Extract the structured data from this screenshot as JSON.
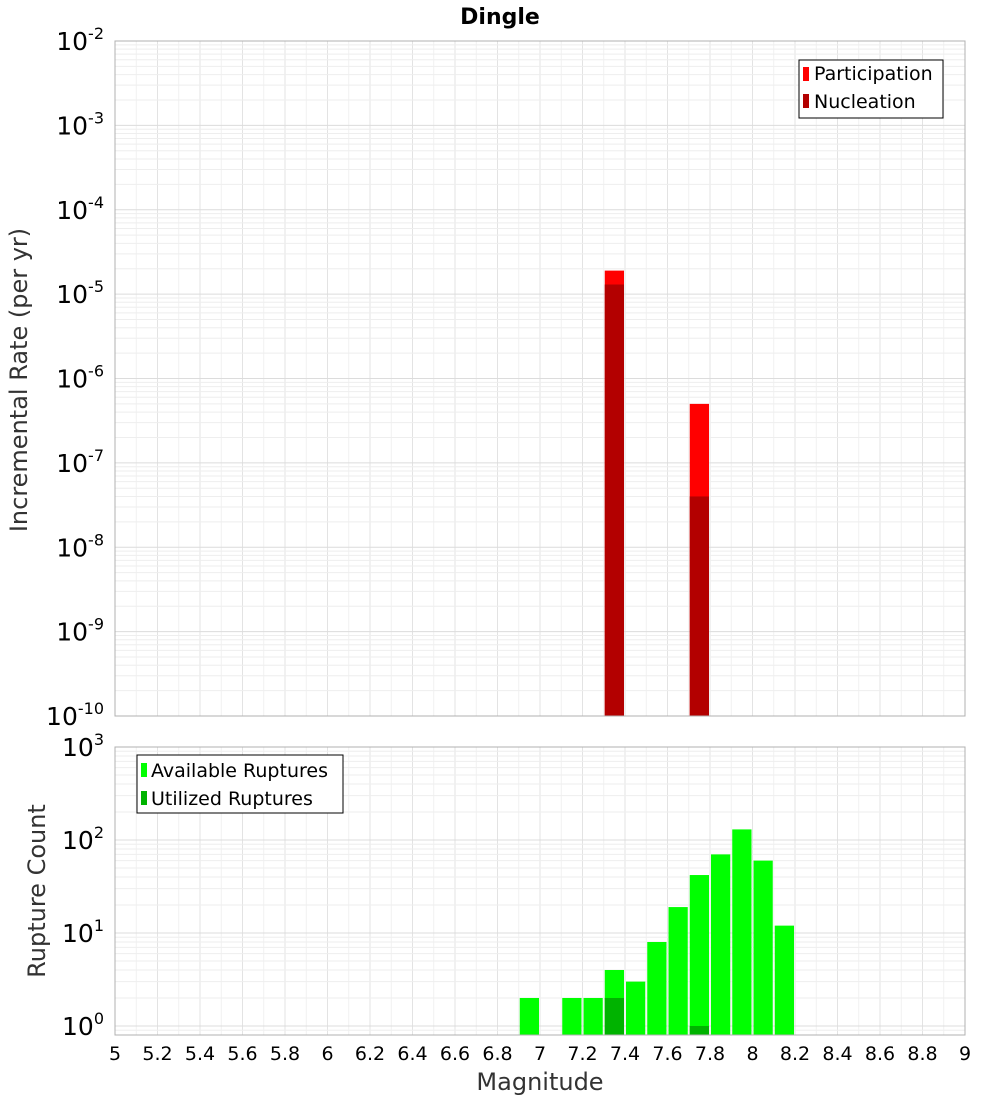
{
  "chart_data": [
    {
      "type": "bar",
      "title": "Dingle",
      "xlabel": "",
      "ylabel": "Incremental Rate (per yr)",
      "yscale": "log",
      "xlim": [
        5,
        9
      ],
      "ylim": [
        1e-10,
        0.01
      ],
      "ytick_exponents": [
        "-2",
        "-3",
        "-4",
        "-5",
        "-6",
        "-7",
        "-8",
        "-9",
        "-10"
      ],
      "ytick_base": "10",
      "legend_position": "top-right",
      "bin_width": 0.1,
      "series": [
        {
          "name": "Participation",
          "color": "#ff0000",
          "x": [
            7.35,
            7.75
          ],
          "values": [
            1.9e-05,
            5e-07
          ]
        },
        {
          "name": "Nucleation",
          "color": "#b30000",
          "x": [
            7.35,
            7.75
          ],
          "values": [
            1.3e-05,
            4e-08
          ]
        }
      ]
    },
    {
      "type": "bar",
      "title": "",
      "xlabel": "Magnitude",
      "ylabel": "Rupture Count",
      "yscale": "log",
      "xlim": [
        5,
        9
      ],
      "ylim": [
        0.8,
        1000
      ],
      "ytick_exponents": [
        "3",
        "2",
        "1",
        "0"
      ],
      "ytick_base": "10",
      "xtick_labels": [
        "5",
        "5.2",
        "5.4",
        "5.6",
        "5.8",
        "6",
        "6.2",
        "6.4",
        "6.6",
        "6.8",
        "7",
        "7.2",
        "7.4",
        "7.6",
        "7.8",
        "8",
        "8.2",
        "8.4",
        "8.6",
        "8.8",
        "9"
      ],
      "legend_position": "top-left",
      "bin_width": 0.1,
      "series": [
        {
          "name": "Available Ruptures",
          "color": "#00ff00",
          "x": [
            6.95,
            7.15,
            7.25,
            7.35,
            7.45,
            7.55,
            7.65,
            7.75,
            7.85,
            7.95,
            8.05,
            8.15
          ],
          "values": [
            2,
            2,
            2,
            4,
            3,
            8,
            19,
            42,
            70,
            130,
            60,
            12
          ]
        },
        {
          "name": "Utilized Ruptures",
          "color": "#00b300",
          "x": [
            7.35,
            7.75
          ],
          "values": [
            2,
            1
          ]
        }
      ]
    }
  ]
}
